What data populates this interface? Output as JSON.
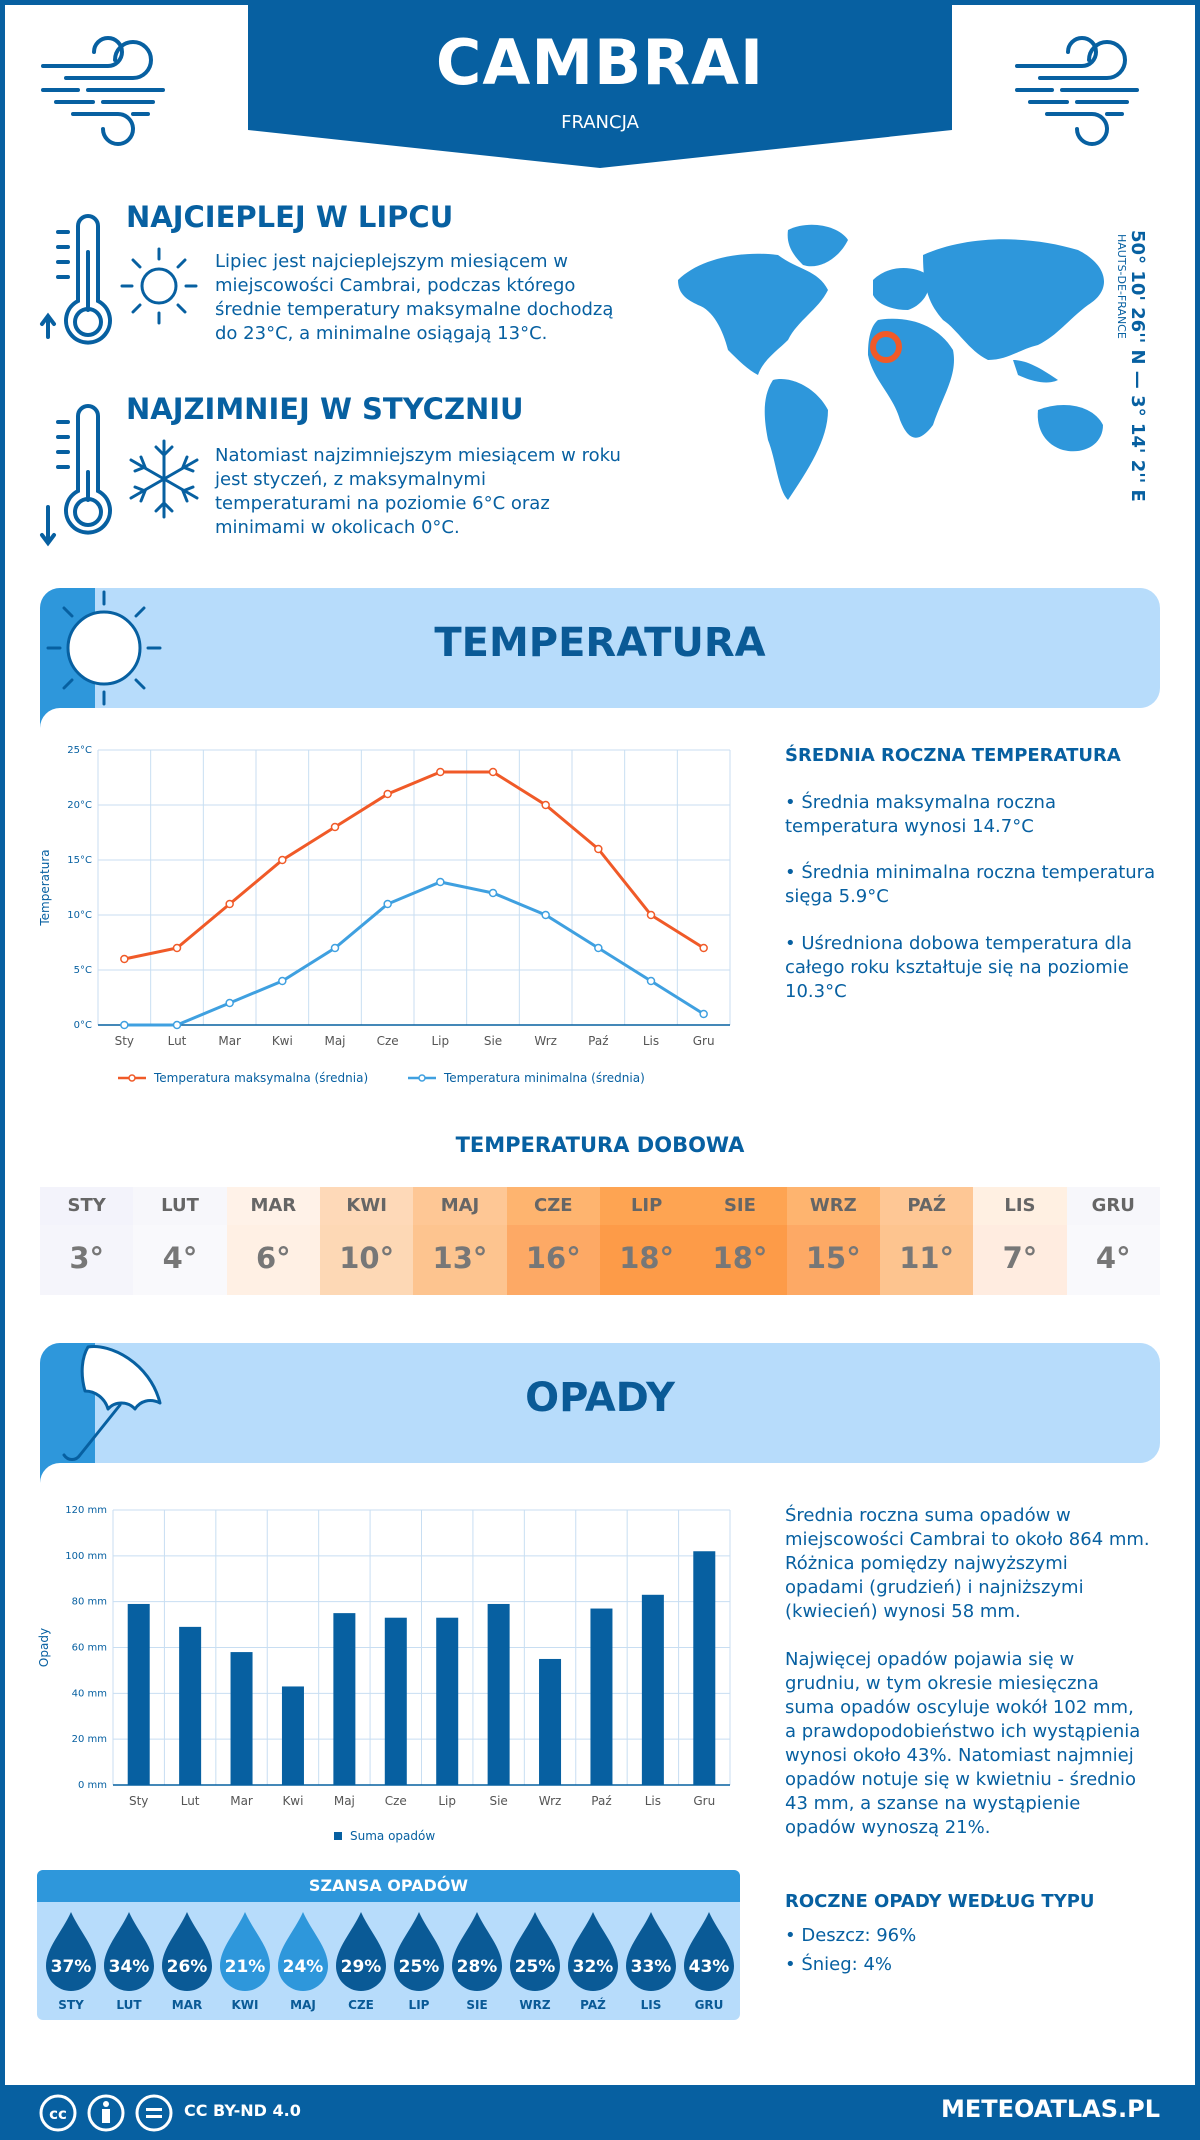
{
  "header": {
    "city": "CAMBRAI",
    "country": "FRANCJA"
  },
  "hottest": {
    "title": "NAJCIEPLEJ W LIPCU",
    "text": "Lipiec jest najcieplejszym miesiącem w miejscowości Cambrai, podczas którego średnie temperatury maksymalne dochodzą do 23°C, a minimalne osiągają 13°C."
  },
  "coldest": {
    "title": "NAJZIMNIEJ W STYCZNIU",
    "text": "Natomiast najzimniejszym miesiącem w roku jest styczeń, z maksymalnymi temperaturami na poziomie 6°C oraz minimami w okolicach 0°C."
  },
  "location": {
    "coords": "50° 10' 26'' N — 3° 14' 2'' E",
    "region": "HAUTS-DE-FRANCE"
  },
  "colors": {
    "primary": "#0760a1",
    "light": "#b7dcfb",
    "max_line": "#f05a28",
    "min_line": "#3fa0e0",
    "bar": "#0760a1"
  },
  "temperature_section": {
    "title": "TEMPERATURA"
  },
  "annual_temp": {
    "title": "ŚREDNIA ROCZNA TEMPERATURA",
    "items": [
      "• Średnia maksymalna roczna temperatura wynosi 14.7°C",
      "• Średnia minimalna roczna temperatura sięga 5.9°C",
      "• Uśredniona dobowa temperatura dla całego roku kształtuje się na poziomie 10.3°C"
    ]
  },
  "daily": {
    "title": "TEMPERATURA DOBOWA",
    "months": [
      "STY",
      "LUT",
      "MAR",
      "KWI",
      "MAJ",
      "CZE",
      "LIP",
      "SIE",
      "WRZ",
      "PAŹ",
      "LIS",
      "GRU"
    ],
    "values": [
      "3°",
      "4°",
      "6°",
      "10°",
      "13°",
      "16°",
      "18°",
      "18°",
      "15°",
      "11°",
      "7°",
      "4°"
    ],
    "head_colors": [
      "#f3f3fb",
      "#f7f7fb",
      "#fff2e8",
      "#fed9b8",
      "#fec795",
      "#feb46f",
      "#fea452",
      "#fea452",
      "#feb46f",
      "#fec795",
      "#fff0e2",
      "#f7f7fb"
    ],
    "cell_colors": [
      "#f5f5fb",
      "#f9f9fc",
      "#fff0e4",
      "#fdd8b5",
      "#fdc48f",
      "#fda965",
      "#fd9b48",
      "#fd9b48",
      "#fda965",
      "#fdc48f",
      "#ffece0",
      "#f9f9fc"
    ]
  },
  "precip_section": {
    "title": "OPADY"
  },
  "precip_text": {
    "p1": "Średnia roczna suma opadów w miejscowości Cambrai to około 864 mm. Różnica pomiędzy najwyższymi opadami (grudzień) i najniższymi (kwiecień) wynosi 58 mm.",
    "p2": "Najwięcej opadów pojawia się w grudniu, w tym okresie miesięczna suma opadów oscyluje wokół 102 mm, a prawdopodobieństwo ich wystąpienia wynosi około 43%. Natomiast najmniej opadów notuje się w kwietniu - średnio 43 mm, a szanse na wystąpienie opadów wynoszą 21%."
  },
  "precip_types": {
    "title": "ROCZNE OPADY WEDŁUG TYPU",
    "items": [
      "• Deszcz: 96%",
      "• Śnieg: 4%"
    ]
  },
  "chance": {
    "title": "SZANSA OPADÓW",
    "months": [
      "STY",
      "LUT",
      "MAR",
      "KWI",
      "MAJ",
      "CZE",
      "LIP",
      "SIE",
      "WRZ",
      "PAŹ",
      "LIS",
      "GRU"
    ],
    "values": [
      "37%",
      "34%",
      "26%",
      "21%",
      "24%",
      "29%",
      "25%",
      "28%",
      "25%",
      "32%",
      "33%",
      "43%"
    ],
    "drop_colors": [
      "#0a5a96",
      "#0a5a96",
      "#0a5a96",
      "#2e97db",
      "#2e97db",
      "#0a5a96",
      "#0a5a96",
      "#0a5a96",
      "#0a5a96",
      "#0a5a96",
      "#0a5a96",
      "#0a5a96"
    ]
  },
  "footer": {
    "license": "CC BY-ND 4.0",
    "site": "METEOATLAS.PL"
  },
  "chart_data": [
    {
      "type": "line",
      "categories": [
        "Sty",
        "Lut",
        "Mar",
        "Kwi",
        "Maj",
        "Cze",
        "Lip",
        "Sie",
        "Wrz",
        "Paź",
        "Lis",
        "Gru"
      ],
      "series": [
        {
          "name": "Temperatura maksymalna (średnia)",
          "values": [
            6,
            7,
            11,
            15,
            18,
            21,
            23,
            23,
            20,
            16,
            10,
            7
          ]
        },
        {
          "name": "Temperatura minimalna (średnia)",
          "values": [
            0,
            0,
            2,
            4,
            7,
            11,
            13,
            12,
            10,
            7,
            4,
            1
          ]
        }
      ],
      "ylabel": "Temperatura",
      "yticks": [
        "0°C",
        "5°C",
        "10°C",
        "15°C",
        "20°C",
        "25°C"
      ],
      "ylim": [
        0,
        25
      ],
      "grid": true,
      "legend": "bottom"
    },
    {
      "type": "bar",
      "categories": [
        "Sty",
        "Lut",
        "Mar",
        "Kwi",
        "Maj",
        "Cze",
        "Lip",
        "Sie",
        "Wrz",
        "Paź",
        "Lis",
        "Gru"
      ],
      "series": [
        {
          "name": "Suma opadów",
          "values": [
            79,
            69,
            58,
            43,
            75,
            73,
            73,
            79,
            55,
            77,
            83,
            102
          ]
        }
      ],
      "ylabel": "Opady",
      "yticks": [
        "0 mm",
        "20 mm",
        "40 mm",
        "60 mm",
        "80 mm",
        "100 mm",
        "120 mm"
      ],
      "ylim": [
        0,
        120
      ],
      "grid": true,
      "legend": "bottom"
    }
  ]
}
